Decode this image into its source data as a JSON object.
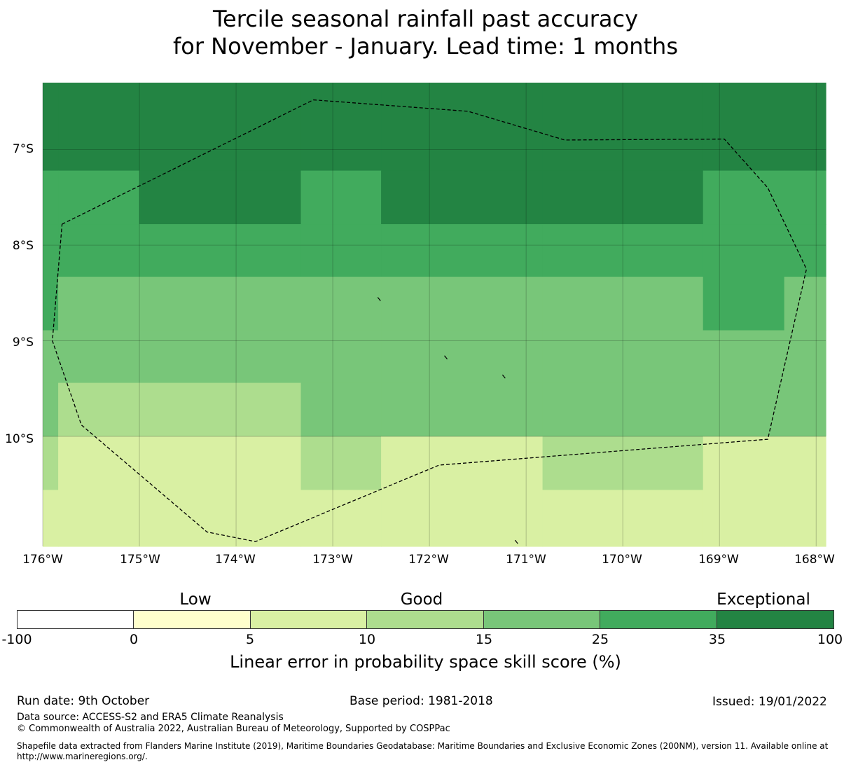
{
  "title": {
    "line1": "Tercile seasonal rainfall past accuracy",
    "line2": "for November - January. Lead time: 1 months"
  },
  "map": {
    "lon_range": [
      -176.0,
      -167.9
    ],
    "lat_range": [
      -11.15,
      -6.3
    ],
    "lat_labels": [
      "7°S",
      "8°S",
      "9°S",
      "10°S"
    ],
    "lat_values": [
      -7,
      -8,
      -9,
      -10
    ],
    "lon_labels": [
      "176°W",
      "175°W",
      "174°W",
      "173°W",
      "172°W",
      "171°W",
      "170°W",
      "169°W",
      "168°W"
    ],
    "lon_values": [
      -176,
      -175,
      -174,
      -173,
      -172,
      -171,
      -170,
      -169,
      -168
    ],
    "grid_on": true,
    "zone_boundary_style": "dashed",
    "skill_grid": {
      "lon_edges": [
        -176.0,
        -175.84,
        -175.0,
        -173.33,
        -172.5,
        -170.83,
        -169.17,
        -168.33,
        -167.9
      ],
      "lat_edges": [
        -6.3,
        -7.22,
        -7.78,
        -8.33,
        -8.89,
        -9.44,
        -10.0,
        -10.56,
        -11.15
      ],
      "classes": [
        [
          "c35",
          "c35",
          "c35",
          "c35",
          "c35",
          "c35",
          "c35",
          "c35"
        ],
        [
          "c25",
          "c25",
          "c35",
          "c25",
          "c35",
          "c35",
          "c25",
          "c25"
        ],
        [
          "c25",
          "c25",
          "c25",
          "c25",
          "c25",
          "c25",
          "c25",
          "c25"
        ],
        [
          "c25",
          "c15",
          "c15",
          "c15",
          "c15",
          "c15",
          "c25",
          "c15"
        ],
        [
          "c15",
          "c15",
          "c15",
          "c15",
          "c15",
          "c15",
          "c15",
          "c15"
        ],
        [
          "c15",
          "c10",
          "c10",
          "c15",
          "c15",
          "c15",
          "c15",
          "c15"
        ],
        [
          "c10",
          "c5",
          "c5",
          "c10",
          "c5",
          "c10",
          "c5",
          "c5"
        ],
        [
          "c5",
          "c5",
          "c5",
          "c5",
          "c5",
          "c5",
          "c5",
          "c5"
        ]
      ]
    },
    "boundary_points": [
      [
        -175.8,
        -7.78
      ],
      [
        -173.2,
        -6.48
      ],
      [
        -171.6,
        -6.6
      ],
      [
        -170.6,
        -6.9
      ],
      [
        -168.95,
        -6.89
      ],
      [
        -168.5,
        -7.4
      ],
      [
        -168.1,
        -8.25
      ],
      [
        -168.5,
        -10.03
      ],
      [
        -171.9,
        -10.3
      ],
      [
        -173.8,
        -11.1
      ],
      [
        -174.3,
        -11.0
      ],
      [
        -175.6,
        -9.88
      ],
      [
        -175.9,
        -9.0
      ],
      [
        -175.8,
        -7.78
      ]
    ],
    "islands": [
      [
        -172.52,
        -8.56
      ],
      [
        -171.83,
        -9.17
      ],
      [
        -171.23,
        -9.37
      ],
      [
        -171.1,
        -11.1
      ]
    ]
  },
  "legend": {
    "category_low": "Low",
    "category_good": "Good",
    "category_exceptional": "Exceptional",
    "ticks": [
      "-100",
      "0",
      "5",
      "10",
      "15",
      "25",
      "35",
      "100"
    ],
    "colors": {
      "c_neg": "#ffffff",
      "c0": "#ffffcc",
      "c5": "#d9f0a3",
      "c10": "#addd8e",
      "c15": "#78c679",
      "c25": "#41ab5d",
      "c35": "#238443"
    },
    "color_order": [
      "c_neg",
      "c0",
      "c5",
      "c10",
      "c15",
      "c25",
      "c35"
    ],
    "label": "Linear error in probability space skill score (%)"
  },
  "footer": {
    "run_date": "Run date: 9th October",
    "base_period": "Base period: 1981-2018",
    "issued": "Issued: 19/01/2022",
    "data_source": "Data source: ACCESS-S2 and ERA5 Climate Reanalysis",
    "copyright": "© Commonwealth of Australia 2022, Australian Bureau of Meteorology, Supported by COSPPac",
    "shapefile_note": "Shapefile data extracted from Flanders Marine Institute (2019), Maritime Boundaries Geodatabase: Maritime Boundaries and Exclusive Economic Zones (200NM), version 11. Available online at http://www.marineregions.org/."
  }
}
